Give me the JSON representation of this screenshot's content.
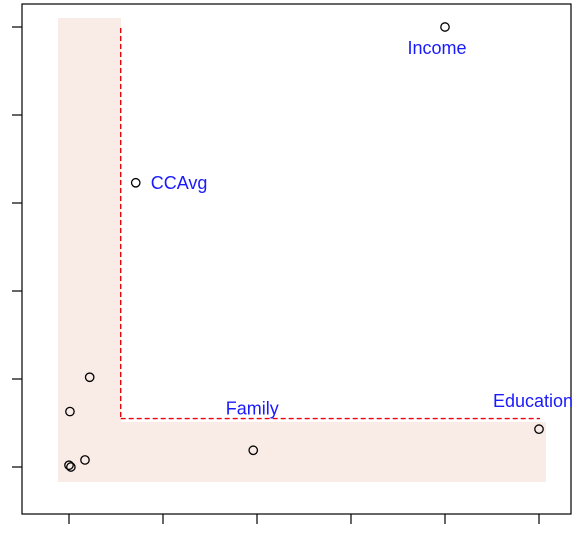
{
  "chart_data": {
    "type": "scatter",
    "title": "",
    "xlabel": "",
    "ylabel": "",
    "xlim": [
      -0.7,
      5.4
    ],
    "ylim": [
      -0.7,
      5.3
    ],
    "x_ticks": [
      0,
      1,
      2,
      3,
      4,
      5
    ],
    "y_ticks": [
      0,
      1,
      2,
      3,
      4,
      5
    ],
    "tick_labels_shown": false,
    "grid": false,
    "legend": "none",
    "points": [
      {
        "x": 0.0,
        "y": 0.02,
        "label": ""
      },
      {
        "x": 0.02,
        "y": 0.0,
        "label": ""
      },
      {
        "x": 0.17,
        "y": 0.08,
        "label": ""
      },
      {
        "x": 0.01,
        "y": 0.63,
        "label": ""
      },
      {
        "x": 0.22,
        "y": 1.02,
        "label": ""
      },
      {
        "x": 0.71,
        "y": 3.23,
        "label": "CCAvg"
      },
      {
        "x": 1.96,
        "y": 0.19,
        "label": "Family"
      },
      {
        "x": 4.0,
        "y": 5.0,
        "label": "Income"
      },
      {
        "x": 5.0,
        "y": 0.43,
        "label": "Education"
      }
    ],
    "threshold_x": 0.55,
    "threshold_y": 0.55,
    "shaded_band_color": "#f9ebe6",
    "threshold_line_color": "#e8000b",
    "label_color": "#1a1aff"
  }
}
